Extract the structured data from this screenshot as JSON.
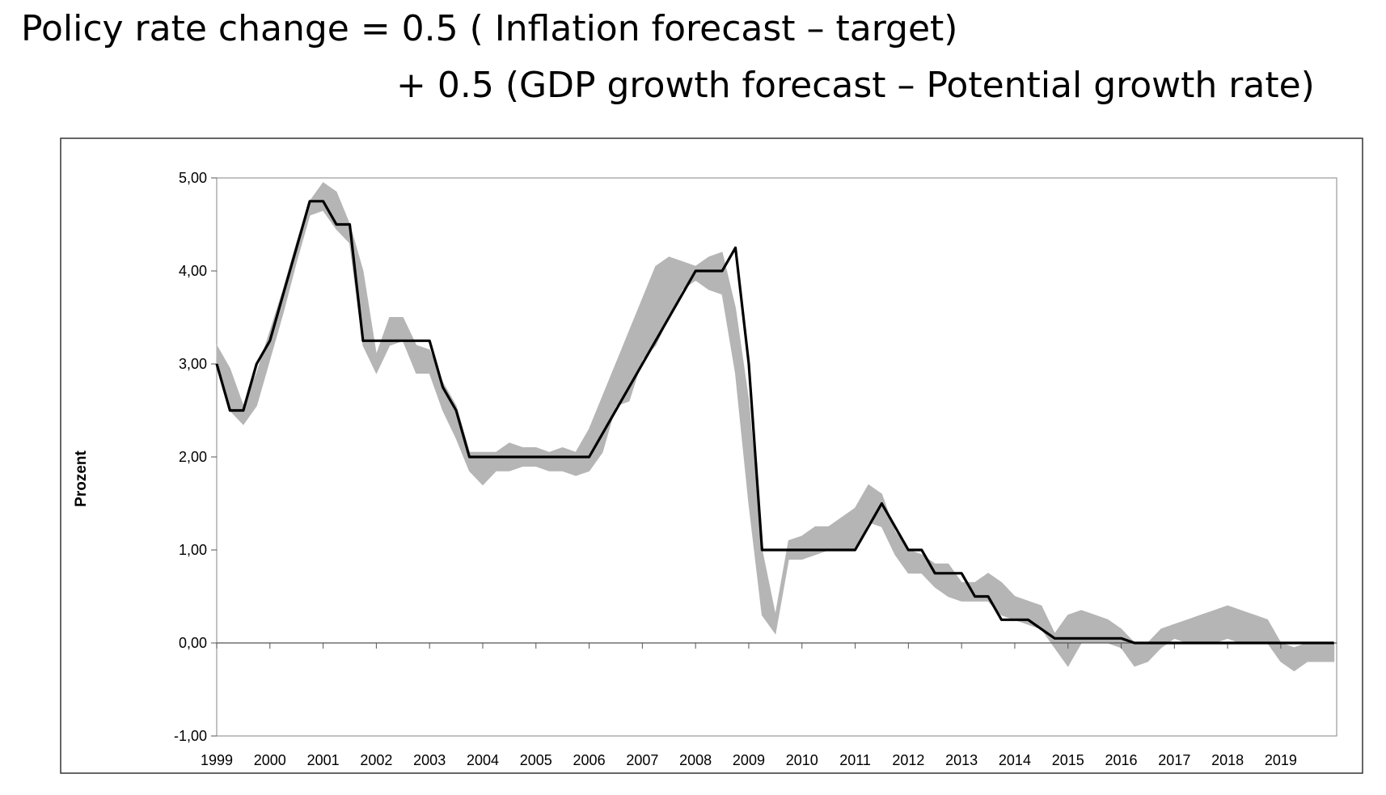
{
  "formula": {
    "line1": "Policy rate change  = 0.5 ( Inflation forecast – target)",
    "line2": "+ 0.5 (GDP growth forecast – Potential growth rate)"
  },
  "chart_data": {
    "type": "line",
    "title": "",
    "ylabel": "Prozent",
    "xlabel": "",
    "ylim": [
      -1,
      5
    ],
    "xlim": [
      1999,
      2020.05
    ],
    "grid": false,
    "legend": "none",
    "y_ticks": [
      "-1,00",
      "0,00",
      "1,00",
      "2,00",
      "3,00",
      "4,00",
      "5,00"
    ],
    "x_ticks": [
      "1999",
      "2000",
      "2001",
      "2002",
      "2003",
      "2004",
      "2005",
      "2006",
      "2007",
      "2008",
      "2009",
      "2010",
      "2011",
      "2012",
      "2013",
      "2014",
      "2015",
      "2016",
      "2017",
      "2018",
      "2019"
    ],
    "colors": {
      "policy_rate": "#000000",
      "band": "#b5b5b5"
    },
    "policy_rate": {
      "x": [
        1999.0,
        1999.25,
        1999.5,
        1999.75,
        2000.0,
        2000.25,
        2000.5,
        2000.75,
        2001.0,
        2001.25,
        2001.5,
        2001.75,
        2002.0,
        2002.5,
        2003.0,
        2003.25,
        2003.5,
        2003.75,
        2004.5,
        2005.5,
        2006.0,
        2006.25,
        2006.5,
        2007.0,
        2007.5,
        2008.0,
        2008.25,
        2008.5,
        2008.75,
        2009.0,
        2009.25,
        2010.0,
        2011.0,
        2011.5,
        2012.0,
        2012.25,
        2012.5,
        2013.0,
        2013.25,
        2013.5,
        2013.75,
        2014.25,
        2014.5,
        2014.75,
        2015.0,
        2016.0,
        2016.25,
        2017.0,
        2018.0,
        2019.0,
        2020.0
      ],
      "y": [
        3.0,
        2.5,
        2.5,
        3.0,
        3.25,
        3.75,
        4.25,
        4.75,
        4.75,
        4.5,
        4.5,
        3.25,
        3.25,
        3.25,
        3.25,
        2.75,
        2.5,
        2.0,
        2.0,
        2.0,
        2.0,
        2.25,
        2.5,
        3.0,
        3.5,
        4.0,
        4.0,
        4.0,
        4.25,
        3.0,
        1.0,
        1.0,
        1.0,
        1.5,
        1.0,
        1.0,
        0.75,
        0.75,
        0.5,
        0.5,
        0.25,
        0.25,
        0.15,
        0.05,
        0.05,
        0.05,
        0.0,
        0.0,
        0.0,
        0.0,
        0.0
      ]
    },
    "band": {
      "x": [
        1999.0,
        1999.25,
        1999.5,
        1999.75,
        2000.0,
        2000.25,
        2000.5,
        2000.75,
        2001.0,
        2001.25,
        2001.5,
        2001.75,
        2002.0,
        2002.25,
        2002.5,
        2002.75,
        2003.0,
        2003.25,
        2003.5,
        2003.75,
        2004.0,
        2004.25,
        2004.5,
        2004.75,
        2005.0,
        2005.25,
        2005.5,
        2005.75,
        2006.0,
        2006.25,
        2006.5,
        2006.75,
        2007.0,
        2007.25,
        2007.5,
        2007.75,
        2008.0,
        2008.25,
        2008.5,
        2008.75,
        2009.0,
        2009.25,
        2009.5,
        2009.75,
        2010.0,
        2010.25,
        2010.5,
        2010.75,
        2011.0,
        2011.25,
        2011.5,
        2011.75,
        2012.0,
        2012.25,
        2012.5,
        2012.75,
        2013.0,
        2013.25,
        2013.5,
        2013.75,
        2014.0,
        2014.25,
        2014.5,
        2014.75,
        2015.0,
        2015.25,
        2015.5,
        2015.75,
        2016.0,
        2016.25,
        2016.5,
        2016.75,
        2017.0,
        2017.25,
        2017.5,
        2017.75,
        2018.0,
        2018.25,
        2018.5,
        2018.75,
        2019.0,
        2019.25,
        2019.5,
        2019.75,
        2020.0
      ],
      "upper": [
        3.2,
        2.95,
        2.55,
        2.9,
        3.35,
        3.8,
        4.3,
        4.75,
        4.95,
        4.85,
        4.5,
        4.0,
        3.1,
        3.5,
        3.5,
        3.2,
        3.15,
        2.8,
        2.55,
        2.05,
        2.05,
        2.05,
        2.15,
        2.1,
        2.1,
        2.05,
        2.1,
        2.05,
        2.3,
        2.65,
        3.0,
        3.35,
        3.7,
        4.05,
        4.15,
        4.1,
        4.05,
        4.15,
        4.2,
        3.6,
        2.6,
        1.0,
        0.3,
        1.1,
        1.15,
        1.25,
        1.25,
        1.35,
        1.45,
        1.7,
        1.6,
        1.2,
        1.0,
        0.95,
        0.85,
        0.85,
        0.65,
        0.65,
        0.75,
        0.65,
        0.5,
        0.45,
        0.4,
        0.1,
        0.3,
        0.35,
        0.3,
        0.25,
        0.15,
        0.0,
        0.0,
        0.15,
        0.2,
        0.25,
        0.3,
        0.35,
        0.4,
        0.35,
        0.3,
        0.25,
        0.0,
        -0.05,
        0.0,
        0.0,
        0.0
      ],
      "lower": [
        3.0,
        2.5,
        2.35,
        2.55,
        3.05,
        3.55,
        4.1,
        4.6,
        4.65,
        4.45,
        4.3,
        3.2,
        2.9,
        3.2,
        3.25,
        2.9,
        2.9,
        2.5,
        2.2,
        1.85,
        1.7,
        1.85,
        1.85,
        1.9,
        1.9,
        1.85,
        1.85,
        1.8,
        1.85,
        2.05,
        2.55,
        2.6,
        3.05,
        3.2,
        3.5,
        3.8,
        3.9,
        3.8,
        3.75,
        2.9,
        1.5,
        0.3,
        0.1,
        0.9,
        0.9,
        0.95,
        1.0,
        1.0,
        1.0,
        1.3,
        1.25,
        0.95,
        0.75,
        0.75,
        0.6,
        0.5,
        0.45,
        0.45,
        0.45,
        0.3,
        0.25,
        0.2,
        0.15,
        -0.05,
        -0.25,
        0.0,
        0.0,
        0.0,
        -0.05,
        -0.25,
        -0.2,
        -0.05,
        0.05,
        0.0,
        0.0,
        0.0,
        0.05,
        0.0,
        0.0,
        0.0,
        -0.2,
        -0.3,
        -0.2,
        -0.2,
        -0.2
      ]
    }
  }
}
